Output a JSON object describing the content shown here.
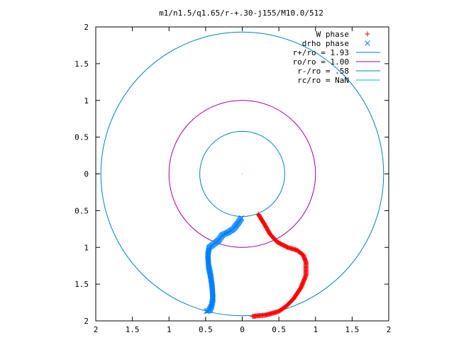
{
  "chart_data": {
    "type": "scatter",
    "title": "m1/n1.5/q1.65/r-+.30-j155/M10.0/512",
    "xlabel": "",
    "ylabel": "",
    "xlim": [
      -2,
      2
    ],
    "ylim": [
      -2,
      2
    ],
    "x_tick_labels": [
      "2",
      "1.5",
      "1",
      "0.5",
      "0",
      "0.5",
      "1",
      "1.5",
      "2"
    ],
    "y_tick_labels": [
      "2",
      "1.5",
      "1",
      "0.5",
      "0",
      "0.5",
      "1",
      "1.5",
      "2"
    ],
    "grid": false,
    "legend_position": "top-right",
    "circles": [
      {
        "label": "r+/ro = 1.93",
        "radius": 1.93,
        "color": "#0080c0"
      },
      {
        "label": "ro/ro = 1.00",
        "radius": 1.0,
        "color": "#a000a0"
      },
      {
        "label": "r-/ro = .58",
        "radius": 0.58,
        "color": "#0080c0"
      },
      {
        "label": "rc/ro = NaN",
        "radius": null,
        "color": "#00c0c0"
      }
    ],
    "series": [
      {
        "name": "W phase",
        "marker": "+",
        "color": "#ff0000",
        "anchors": [
          [
            0.22,
            -0.55
          ],
          [
            0.3,
            -0.68
          ],
          [
            0.38,
            -0.82
          ],
          [
            0.48,
            -0.93
          ],
          [
            0.62,
            -1.0
          ],
          [
            0.75,
            -1.04
          ],
          [
            0.83,
            -1.1
          ],
          [
            0.87,
            -1.2
          ],
          [
            0.87,
            -1.38
          ],
          [
            0.8,
            -1.55
          ],
          [
            0.7,
            -1.7
          ],
          [
            0.6,
            -1.8
          ],
          [
            0.5,
            -1.87
          ],
          [
            0.4,
            -1.9
          ],
          [
            0.32,
            -1.92
          ],
          [
            0.22,
            -1.93
          ],
          [
            0.14,
            -1.94
          ]
        ]
      },
      {
        "name": "drho phase",
        "marker": "x",
        "color": "#0080ff",
        "anchors": [
          [
            -0.01,
            -0.6
          ],
          [
            -0.05,
            -0.66
          ],
          [
            -0.12,
            -0.75
          ],
          [
            -0.2,
            -0.8
          ],
          [
            -0.27,
            -0.83
          ],
          [
            -0.32,
            -0.9
          ],
          [
            -0.38,
            -0.95
          ],
          [
            -0.45,
            -1.0
          ],
          [
            -0.47,
            -1.1
          ],
          [
            -0.46,
            -1.25
          ],
          [
            -0.43,
            -1.4
          ],
          [
            -0.41,
            -1.55
          ],
          [
            -0.4,
            -1.7
          ],
          [
            -0.42,
            -1.8
          ],
          [
            -0.45,
            -1.86
          ],
          [
            -0.49,
            -1.87
          ]
        ]
      }
    ],
    "center_marker": [
      0,
      0
    ]
  }
}
